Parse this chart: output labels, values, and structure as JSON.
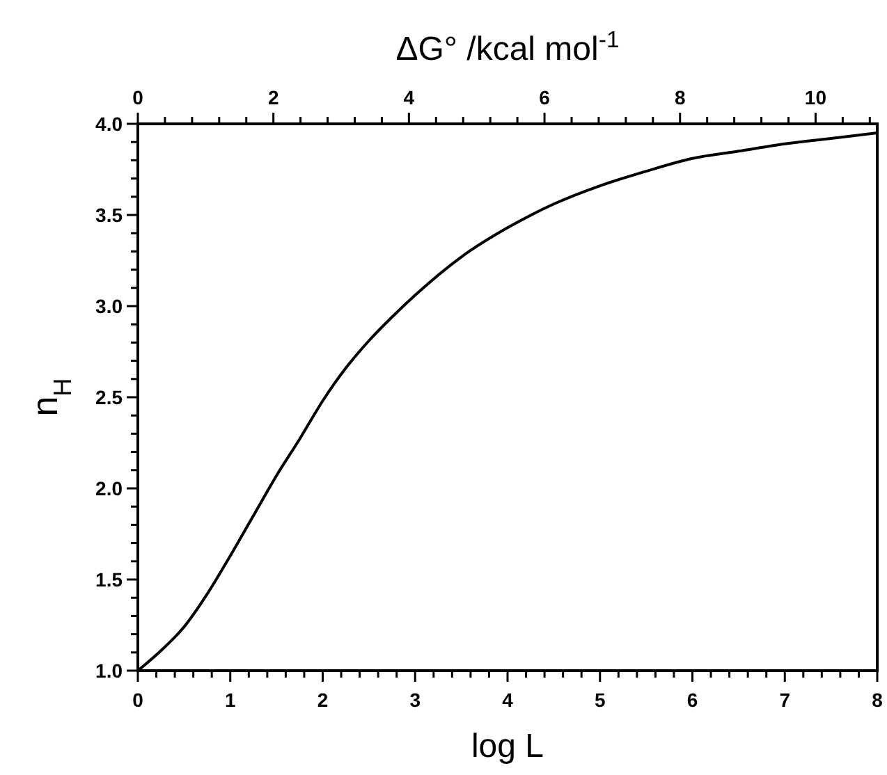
{
  "chart_data": {
    "type": "line",
    "xlabel": "log L",
    "ylabel": "n$_{H}$",
    "x2label": "ΔG° /kcal mol$^{-1}$",
    "series": [
      {
        "color": "#000000",
        "x": [
          0,
          0.25,
          0.5,
          0.75,
          1,
          1.25,
          1.5,
          1.75,
          2,
          2.25,
          2.5,
          2.75,
          3,
          3.5,
          4,
          4.5,
          5,
          5.5,
          6,
          6.5,
          7,
          7.5,
          8
        ],
        "values": [
          1.0,
          1.11,
          1.24,
          1.42,
          1.63,
          1.85,
          2.07,
          2.27,
          2.48,
          2.66,
          2.81,
          2.94,
          3.06,
          3.27,
          3.43,
          3.56,
          3.66,
          3.74,
          3.81,
          3.85,
          3.89,
          3.92,
          3.95
        ]
      }
    ],
    "xlim": [
      0,
      8
    ],
    "ylim": [
      1,
      4
    ],
    "x2lim": [
      0,
      10.91
    ],
    "xticks": [
      0,
      {
        "value": 0.2,
        "label": null
      },
      {
        "value": 0.4,
        "label": null
      },
      {
        "value": 0.6,
        "label": null
      },
      {
        "value": 0.8,
        "label": null
      },
      1,
      {
        "value": 1.2,
        "label": null
      },
      {
        "value": 1.4,
        "label": null
      },
      {
        "value": 1.6,
        "label": null
      },
      {
        "value": 1.8,
        "label": null
      },
      2,
      {
        "value": 2.2,
        "label": null
      },
      {
        "value": 2.4,
        "label": null
      },
      {
        "value": 2.6,
        "label": null
      },
      {
        "value": 2.8,
        "label": null
      },
      3,
      {
        "value": 3.2,
        "label": null
      },
      {
        "value": 3.4,
        "label": null
      },
      {
        "value": 3.6,
        "label": null
      },
      {
        "value": 3.8,
        "label": null
      },
      4,
      {
        "value": 4.2,
        "label": null
      },
      {
        "value": 4.4,
        "label": null
      },
      {
        "value": 4.6,
        "label": null
      },
      {
        "value": 4.8,
        "label": null
      },
      5,
      {
        "value": 5.2,
        "label": null
      },
      {
        "value": 5.4,
        "label": null
      },
      {
        "value": 5.6,
        "label": null
      },
      {
        "value": 5.8,
        "label": null
      },
      6,
      {
        "value": 6.2,
        "label": null
      },
      {
        "value": 6.4,
        "label": null
      },
      {
        "value": 6.6,
        "label": null
      },
      {
        "value": 6.8,
        "label": null
      },
      7,
      {
        "value": 7.2,
        "label": null
      },
      {
        "value": 7.4,
        "label": null
      },
      {
        "value": 7.6,
        "label": null
      },
      {
        "value": 7.8,
        "label": null
      },
      8
    ],
    "x2ticks": [
      0,
      {
        "value": 0.4,
        "label": null
      },
      {
        "value": 0.8,
        "label": null
      },
      {
        "value": 1.2,
        "label": null
      },
      {
        "value": 1.6,
        "label": null
      },
      2,
      {
        "value": 2.4,
        "label": null
      },
      {
        "value": 2.8,
        "label": null
      },
      {
        "value": 3.2,
        "label": null
      },
      {
        "value": 3.6,
        "label": null
      },
      4,
      {
        "value": 4.4,
        "label": null
      },
      {
        "value": 4.8,
        "label": null
      },
      {
        "value": 5.2,
        "label": null
      },
      {
        "value": 5.6,
        "label": null
      },
      6,
      {
        "value": 6.4,
        "label": null
      },
      {
        "value": 6.8,
        "label": null
      },
      {
        "value": 7.2,
        "label": null
      },
      {
        "value": 7.6,
        "label": null
      },
      8,
      {
        "value": 8.4,
        "label": null
      },
      {
        "value": 8.8,
        "label": null
      },
      {
        "value": 9.2,
        "label": null
      },
      {
        "value": 9.6,
        "label": null
      },
      10,
      {
        "value": 10.4,
        "label": null
      },
      {
        "value": 10.8,
        "label": null
      }
    ],
    "yticks": [
      {
        "value": 1,
        "label": "1.0"
      },
      {
        "value": 1.1,
        "label": null
      },
      {
        "value": 1.2,
        "label": null
      },
      {
        "value": 1.3,
        "label": null
      },
      {
        "value": 1.4,
        "label": null
      },
      1.5,
      {
        "value": 1.6,
        "label": null
      },
      {
        "value": 1.7,
        "label": null
      },
      {
        "value": 1.8,
        "label": null
      },
      {
        "value": 1.9,
        "label": null
      },
      {
        "value": 2,
        "label": "2.0"
      },
      {
        "value": 2.1,
        "label": null
      },
      {
        "value": 2.2,
        "label": null
      },
      {
        "value": 2.3,
        "label": null
      },
      {
        "value": 2.4,
        "label": null
      },
      2.5,
      {
        "value": 2.6,
        "label": null
      },
      {
        "value": 2.7,
        "label": null
      },
      {
        "value": 2.8,
        "label": null
      },
      {
        "value": 2.9,
        "label": null
      },
      {
        "value": 3,
        "label": "3.0"
      },
      {
        "value": 3.1,
        "label": null
      },
      {
        "value": 3.2,
        "label": null
      },
      {
        "value": 3.3,
        "label": null
      },
      {
        "value": 3.4,
        "label": null
      },
      3.5,
      {
        "value": 3.6,
        "label": null
      },
      {
        "value": 3.7,
        "label": null
      },
      {
        "value": 3.8,
        "label": null
      },
      {
        "value": 3.9,
        "label": null
      },
      {
        "value": 4,
        "label": "4.0"
      }
    ],
    "marker": "none",
    "line_style": "solid",
    "grid": false
  }
}
